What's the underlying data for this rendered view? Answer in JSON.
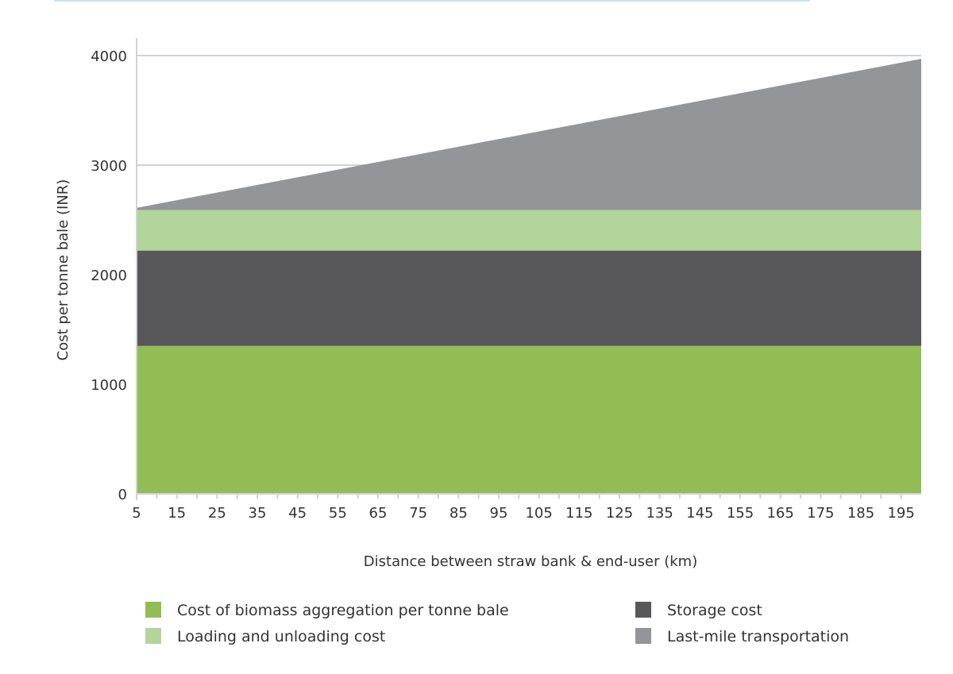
{
  "chart_data": {
    "type": "area",
    "stacked": true,
    "title": "",
    "xlabel": "Distance between straw bank & end-user (km)",
    "ylabel": "Cost per tonne bale (INR)",
    "xlim": [
      5,
      200
    ],
    "ylim": [
      0,
      4000
    ],
    "x_ticks": [
      5,
      15,
      25,
      35,
      45,
      55,
      65,
      75,
      85,
      95,
      105,
      115,
      125,
      135,
      145,
      155,
      165,
      175,
      185,
      195
    ],
    "y_ticks": [
      0,
      1000,
      2000,
      3000,
      4000
    ],
    "grid": "horizontal",
    "legend_position": "bottom",
    "x": [
      5,
      200
    ],
    "series": [
      {
        "name": "Cost of biomass aggregation per tonne bale",
        "values": [
          1350,
          1350
        ],
        "color": "#92bd55"
      },
      {
        "name": "Storage cost",
        "values": [
          870,
          870
        ],
        "color": "#58585b"
      },
      {
        "name": "Loading and unloading cost",
        "values": [
          370,
          370
        ],
        "color": "#b2d59a"
      },
      {
        "name": "Last-mile transportation",
        "values": [
          20,
          1380
        ],
        "color": "#939598"
      }
    ],
    "legend_order": [
      "Cost of biomass aggregation per tonne bale",
      "Storage cost",
      "Loading and unloading cost",
      "Last-mile transportation"
    ]
  }
}
